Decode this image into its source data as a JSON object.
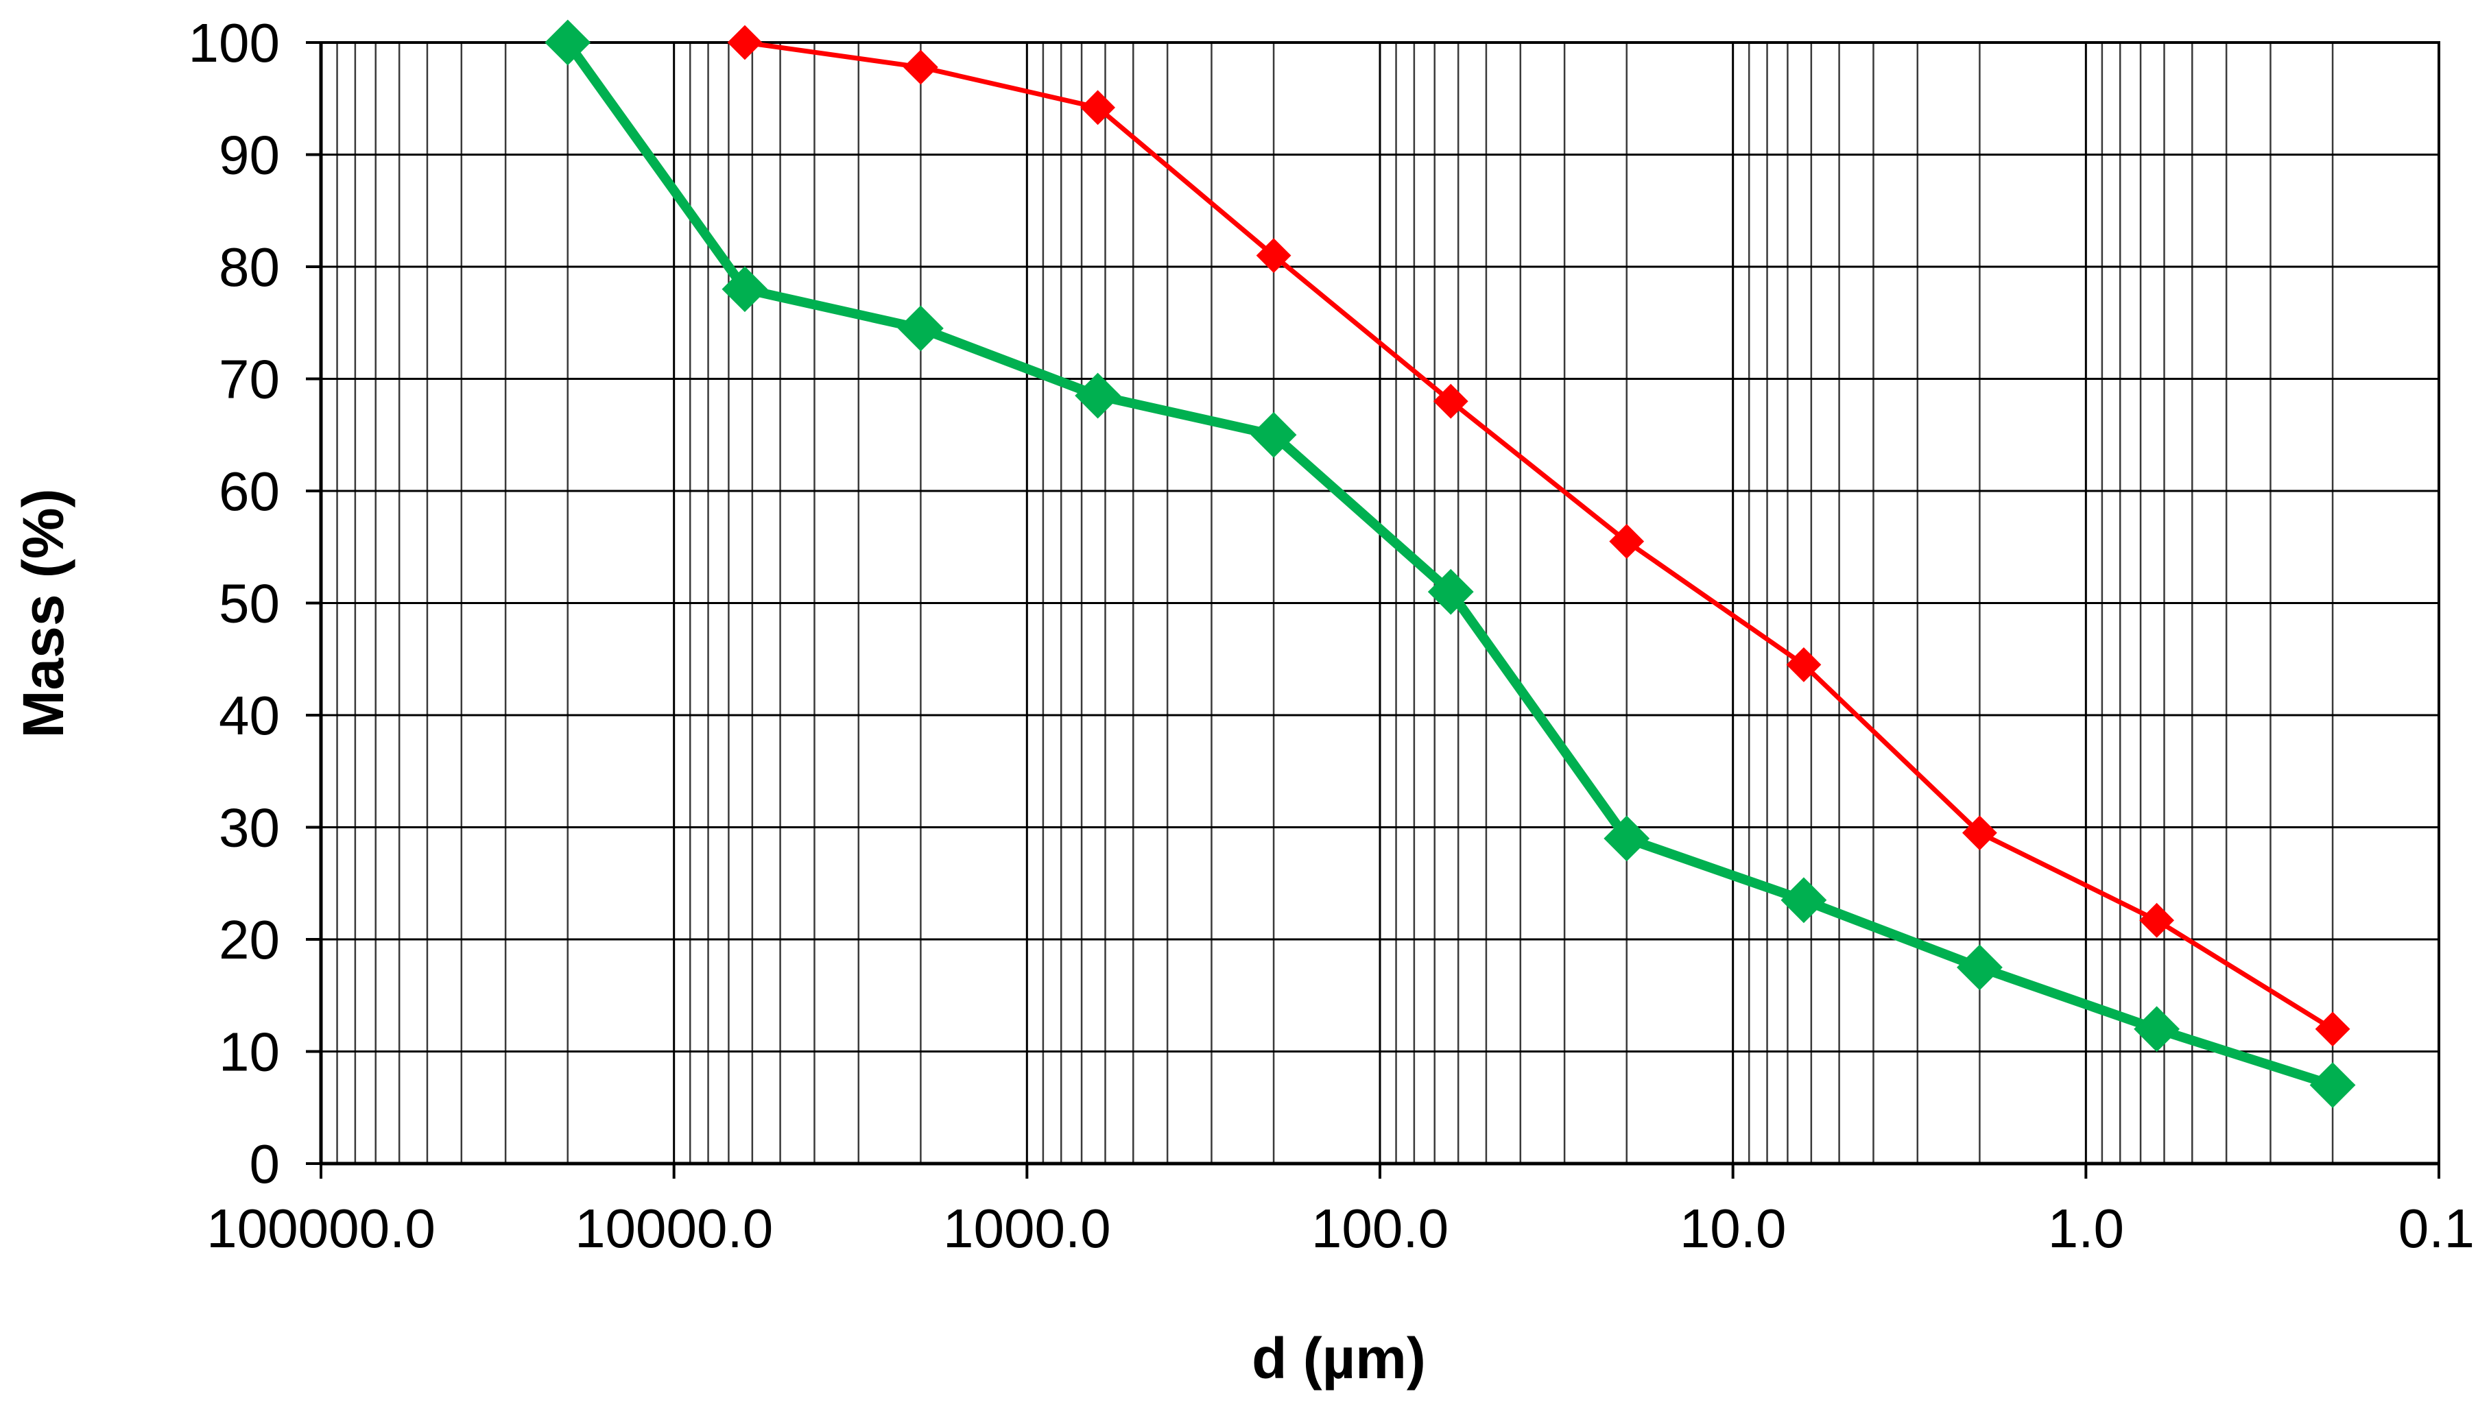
{
  "chart_data": {
    "type": "line",
    "title": "",
    "xlabel": "d (µm)",
    "ylabel": "Mass (%)",
    "x_scale": "log",
    "x_reversed": true,
    "xlim": [
      100000,
      0.1
    ],
    "ylim": [
      0,
      100
    ],
    "grid": true,
    "legend": "none",
    "x_ticks": [
      {
        "value": 100000,
        "label": "100000.0"
      },
      {
        "value": 10000,
        "label": "10000.0"
      },
      {
        "value": 1000,
        "label": "1000.0"
      },
      {
        "value": 100,
        "label": "100.0"
      },
      {
        "value": 10,
        "label": "10.0"
      },
      {
        "value": 1,
        "label": "1.0"
      },
      {
        "value": 0.1,
        "label": "0.1"
      }
    ],
    "y_ticks": [
      {
        "value": 0,
        "label": "0"
      },
      {
        "value": 10,
        "label": "10"
      },
      {
        "value": 20,
        "label": "20"
      },
      {
        "value": 30,
        "label": "30"
      },
      {
        "value": 40,
        "label": "40"
      },
      {
        "value": 50,
        "label": "50"
      },
      {
        "value": 60,
        "label": "60"
      },
      {
        "value": 70,
        "label": "70"
      },
      {
        "value": 80,
        "label": "80"
      },
      {
        "value": 90,
        "label": "90"
      },
      {
        "value": 100,
        "label": "100"
      }
    ],
    "series": [
      {
        "color": "#ff0000",
        "marker": "diamond",
        "points": [
          {
            "x": 6300,
            "y": 100
          },
          {
            "x": 2000,
            "y": 97.8
          },
          {
            "x": 630,
            "y": 94.2
          },
          {
            "x": 200,
            "y": 81
          },
          {
            "x": 63,
            "y": 68
          },
          {
            "x": 20,
            "y": 55.5
          },
          {
            "x": 6.3,
            "y": 44.5
          },
          {
            "x": 2,
            "y": 29.5
          },
          {
            "x": 0.63,
            "y": 21.7
          },
          {
            "x": 0.2,
            "y": 12
          }
        ]
      },
      {
        "color": "#00b050",
        "marker": "diamond",
        "points": [
          {
            "x": 20000,
            "y": 100
          },
          {
            "x": 6300,
            "y": 78
          },
          {
            "x": 2000,
            "y": 74.5
          },
          {
            "x": 630,
            "y": 68.5
          },
          {
            "x": 200,
            "y": 65
          },
          {
            "x": 63,
            "y": 51
          },
          {
            "x": 20,
            "y": 29
          },
          {
            "x": 6.3,
            "y": 23.5
          },
          {
            "x": 2,
            "y": 17.5
          },
          {
            "x": 0.63,
            "y": 12
          },
          {
            "x": 0.2,
            "y": 7
          }
        ]
      }
    ]
  }
}
